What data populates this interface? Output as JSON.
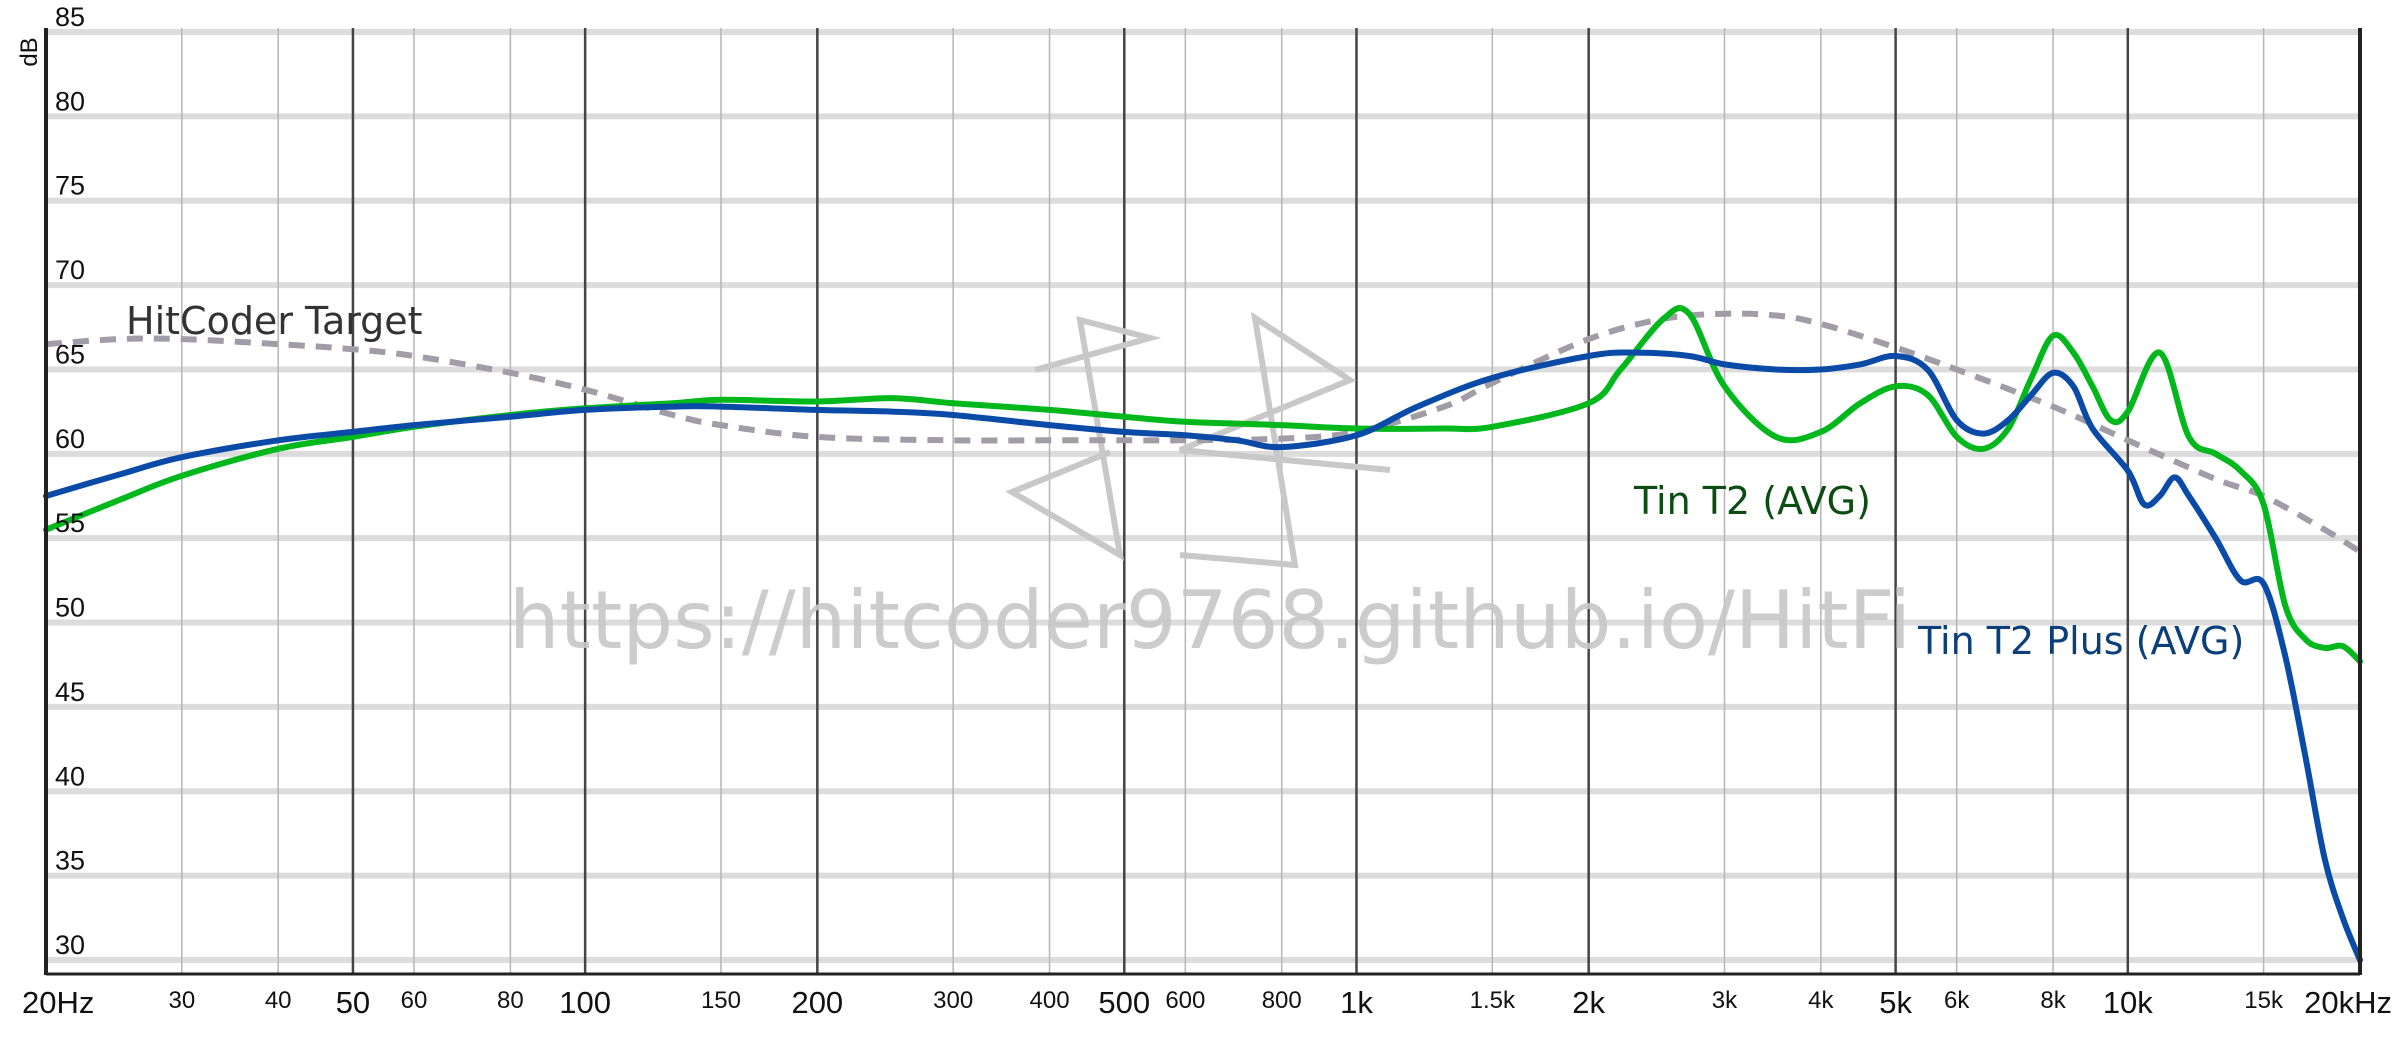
{
  "chart_data": {
    "type": "line",
    "title": "",
    "xlabel": "",
    "ylabel": "dB",
    "x_scale": "log",
    "xlim": [
      20,
      20000
    ],
    "ylim": [
      30,
      85
    ],
    "y_ticks": [
      30,
      35,
      40,
      45,
      50,
      55,
      60,
      65,
      70,
      75,
      80,
      85
    ],
    "y_tick_labels": [
      "30",
      "35",
      "40",
      "45",
      "50",
      "55",
      "60",
      "65",
      "70",
      "75",
      "80",
      "85"
    ],
    "x_ticks": [
      {
        "value": 20,
        "label": "20Hz",
        "major": true
      },
      {
        "value": 30,
        "label": "30",
        "major": false
      },
      {
        "value": 40,
        "label": "40",
        "major": false
      },
      {
        "value": 50,
        "label": "50",
        "major": true
      },
      {
        "value": 60,
        "label": "60",
        "major": false
      },
      {
        "value": 80,
        "label": "80",
        "major": false
      },
      {
        "value": 100,
        "label": "100",
        "major": true
      },
      {
        "value": 150,
        "label": "150",
        "major": false
      },
      {
        "value": 200,
        "label": "200",
        "major": true
      },
      {
        "value": 300,
        "label": "300",
        "major": false
      },
      {
        "value": 400,
        "label": "400",
        "major": false
      },
      {
        "value": 500,
        "label": "500",
        "major": true
      },
      {
        "value": 600,
        "label": "600",
        "major": false
      },
      {
        "value": 800,
        "label": "800",
        "major": false
      },
      {
        "value": 1000,
        "label": "1k",
        "major": true
      },
      {
        "value": 1500,
        "label": "1.5k",
        "major": false
      },
      {
        "value": 2000,
        "label": "2k",
        "major": true
      },
      {
        "value": 3000,
        "label": "3k",
        "major": false
      },
      {
        "value": 4000,
        "label": "4k",
        "major": false
      },
      {
        "value": 5000,
        "label": "5k",
        "major": true
      },
      {
        "value": 6000,
        "label": "6k",
        "major": false
      },
      {
        "value": 8000,
        "label": "8k",
        "major": false
      },
      {
        "value": 10000,
        "label": "10k",
        "major": true
      },
      {
        "value": 15000,
        "label": "15k",
        "major": false
      },
      {
        "value": 20000,
        "label": "20kHz",
        "major": true
      }
    ],
    "grid": true,
    "legend": "inline labels",
    "watermark": "https://hitcoder9768.github.io/HitFi",
    "series": [
      {
        "name": "HitCoder Target",
        "color": "#a19ca8",
        "dashed": true,
        "x": [
          20,
          25,
          30,
          40,
          50,
          60,
          80,
          100,
          130,
          150,
          200,
          300,
          400,
          500,
          600,
          800,
          1000,
          1300,
          1500,
          2000,
          2500,
          3000,
          3500,
          4000,
          5000,
          6000,
          8000,
          10000,
          13000,
          15000,
          18000,
          20000
        ],
        "y": [
          66.5,
          66.8,
          66.8,
          66.5,
          66.2,
          65.8,
          64.8,
          63.8,
          62.3,
          61.7,
          61.0,
          60.8,
          60.8,
          60.8,
          60.8,
          60.9,
          61.3,
          62.8,
          64.2,
          66.8,
          68.0,
          68.3,
          68.2,
          67.7,
          66.3,
          65.0,
          62.8,
          60.8,
          58.5,
          57.5,
          55.5,
          54.2
        ]
      },
      {
        "name": "Tin T2 (AVG)",
        "color": "#00b81c",
        "dashed": false,
        "x": [
          20,
          25,
          30,
          40,
          50,
          60,
          80,
          100,
          130,
          150,
          200,
          250,
          300,
          400,
          500,
          600,
          800,
          1000,
          1300,
          1500,
          2000,
          2200,
          2500,
          2700,
          3000,
          3500,
          4000,
          4500,
          5000,
          5500,
          6000,
          6500,
          7000,
          7500,
          8000,
          8500,
          9000,
          9500,
          10000,
          11000,
          12000,
          13000,
          14000,
          15000,
          16000,
          17000,
          18000,
          19000,
          20000
        ],
        "y": [
          55.5,
          57.3,
          58.7,
          60.3,
          61.0,
          61.6,
          62.3,
          62.7,
          63.0,
          63.2,
          63.1,
          63.3,
          63.0,
          62.6,
          62.2,
          61.9,
          61.7,
          61.5,
          61.5,
          61.6,
          63.0,
          65.0,
          68.0,
          68.3,
          64.0,
          61.0,
          61.3,
          63.0,
          64.0,
          63.5,
          61.0,
          60.3,
          61.5,
          64.5,
          67.0,
          66.0,
          64.0,
          62.0,
          62.5,
          66.0,
          61.0,
          60.0,
          59.0,
          57.0,
          51.0,
          49.0,
          48.5,
          48.6,
          47.7
        ]
      },
      {
        "name": "Tin T2 Plus (AVG)",
        "color": "#0a4ba8",
        "dashed": false,
        "x": [
          20,
          25,
          30,
          40,
          50,
          60,
          80,
          100,
          130,
          150,
          200,
          250,
          300,
          400,
          500,
          600,
          700,
          800,
          1000,
          1200,
          1500,
          2000,
          2300,
          2700,
          3000,
          3500,
          4000,
          4500,
          5000,
          5500,
          6000,
          6500,
          7000,
          7500,
          8000,
          8500,
          9000,
          10000,
          10500,
          11000,
          11500,
          12000,
          13000,
          14000,
          15000,
          16000,
          17000,
          18000,
          19000,
          20000
        ],
        "y": [
          57.5,
          58.8,
          59.8,
          60.8,
          61.3,
          61.7,
          62.2,
          62.6,
          62.8,
          62.8,
          62.6,
          62.5,
          62.3,
          61.7,
          61.3,
          61.1,
          60.8,
          60.4,
          61.1,
          62.8,
          64.5,
          65.8,
          66.0,
          65.8,
          65.3,
          65.0,
          65.0,
          65.3,
          65.8,
          65.0,
          62.0,
          61.2,
          62.0,
          63.5,
          64.8,
          64.0,
          61.5,
          59.0,
          57.0,
          57.5,
          58.6,
          57.5,
          55.0,
          52.5,
          52.3,
          48.0,
          42.0,
          36.0,
          32.5,
          30.0
        ]
      }
    ],
    "annotations": [
      {
        "text": "HitCoder Target",
        "color": "#333333"
      },
      {
        "text": "Tin T2 (AVG)",
        "color": "#0c4d12"
      },
      {
        "text": "Tin T2 Plus (AVG)",
        "color": "#0b3f7a"
      }
    ]
  }
}
